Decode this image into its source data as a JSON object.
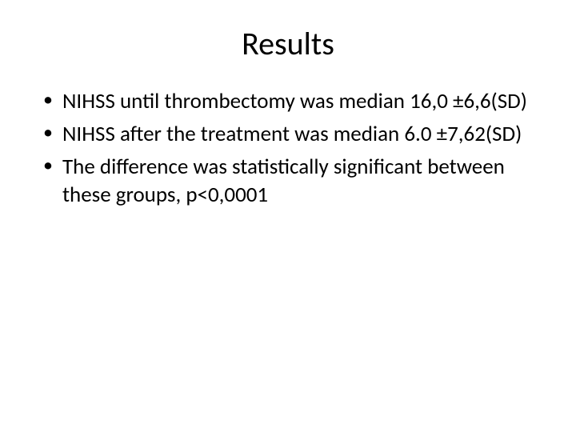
{
  "slide": {
    "title": "Results",
    "title_fontsize": 40,
    "title_align": "center",
    "background_color": "#ffffff",
    "text_color": "#000000",
    "bullets": [
      "NIHSS until thrombectomy was median 16,0 ±6,6(SD)",
      "NIHSS after the treatment was median  6.0 ±7,62(SD)",
      "The difference was statistically significant between these groups,  p<0,0001"
    ],
    "bullet_fontsize": 27,
    "bullet_marker": "•",
    "font_family": "Calibri"
  }
}
